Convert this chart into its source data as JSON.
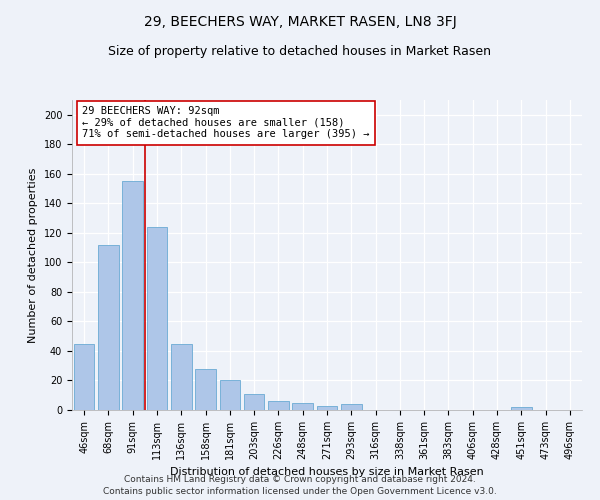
{
  "title": "29, BEECHERS WAY, MARKET RASEN, LN8 3FJ",
  "subtitle": "Size of property relative to detached houses in Market Rasen",
  "xlabel": "Distribution of detached houses by size in Market Rasen",
  "ylabel": "Number of detached properties",
  "footnote1": "Contains HM Land Registry data © Crown copyright and database right 2024.",
  "footnote2": "Contains public sector information licensed under the Open Government Licence v3.0.",
  "categories": [
    "46sqm",
    "68sqm",
    "91sqm",
    "113sqm",
    "136sqm",
    "158sqm",
    "181sqm",
    "203sqm",
    "226sqm",
    "248sqm",
    "271sqm",
    "293sqm",
    "316sqm",
    "338sqm",
    "361sqm",
    "383sqm",
    "406sqm",
    "428sqm",
    "451sqm",
    "473sqm",
    "496sqm"
  ],
  "values": [
    45,
    112,
    155,
    124,
    45,
    28,
    20,
    11,
    6,
    5,
    3,
    4,
    0,
    0,
    0,
    0,
    0,
    0,
    2,
    0,
    0
  ],
  "bar_color": "#aec6e8",
  "bar_edge_color": "#6aaad4",
  "vline_x": 2.5,
  "vline_color": "#cc0000",
  "annotation_line1": "29 BEECHERS WAY: 92sqm",
  "annotation_line2": "← 29% of detached houses are smaller (158)",
  "annotation_line3": "71% of semi-detached houses are larger (395) →",
  "annotation_box_color": "#ffffff",
  "annotation_box_edge": "#cc0000",
  "ylim": [
    0,
    210
  ],
  "yticks": [
    0,
    20,
    40,
    60,
    80,
    100,
    120,
    140,
    160,
    180,
    200
  ],
  "background_color": "#eef2f9",
  "grid_color": "#ffffff",
  "title_fontsize": 10,
  "subtitle_fontsize": 9,
  "axis_label_fontsize": 8,
  "tick_fontsize": 7,
  "annotation_fontsize": 7.5,
  "footnote_fontsize": 6.5
}
